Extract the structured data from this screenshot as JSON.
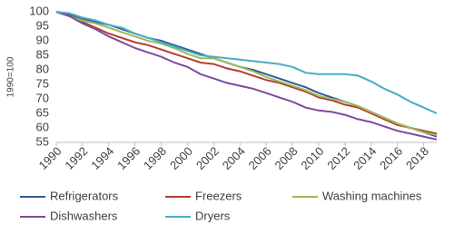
{
  "chart_data": {
    "type": "line",
    "y_label": "1990=100",
    "x": [
      1990,
      1991,
      1992,
      1993,
      1994,
      1995,
      1996,
      1997,
      1998,
      1999,
      2000,
      2001,
      2002,
      2003,
      2004,
      2005,
      2006,
      2007,
      2008,
      2009,
      2010,
      2011,
      2012,
      2013,
      2014,
      2015,
      2016,
      2017,
      2018,
      2019
    ],
    "xlim": [
      1990,
      2019
    ],
    "xticks": [
      1990,
      1992,
      1994,
      1996,
      1998,
      2000,
      2002,
      2004,
      2006,
      2008,
      2010,
      2012,
      2014,
      2016,
      2018
    ],
    "ylim": [
      55,
      100
    ],
    "yticks": [
      55,
      60,
      65,
      70,
      75,
      80,
      85,
      90,
      95,
      100
    ],
    "grid": false,
    "legend": "bottom",
    "series": [
      {
        "name": "Refrigerators",
        "color": "#2f5b9a",
        "values": [
          100,
          99,
          97.5,
          96.5,
          95.5,
          94,
          92.5,
          91,
          90,
          88.5,
          87,
          85.5,
          84,
          82.5,
          81,
          80,
          78.5,
          77,
          75.5,
          74,
          72,
          70.5,
          69,
          67.5,
          65.5,
          63.5,
          61.5,
          60,
          58.5,
          57
        ]
      },
      {
        "name": "Freezers",
        "color": "#b83c33",
        "values": [
          100,
          98.5,
          96.5,
          94.5,
          92.5,
          91,
          89.5,
          88.5,
          87,
          85.5,
          84,
          82.5,
          82,
          80.5,
          79.5,
          78,
          76.5,
          75.5,
          74,
          72.5,
          70.5,
          69.5,
          68,
          67,
          65,
          63,
          61,
          60,
          59,
          58
        ]
      },
      {
        "name": "Washing machines",
        "color": "#9bbb59",
        "values": [
          100,
          98.5,
          97,
          96,
          94.5,
          93,
          91.5,
          90,
          89,
          87.5,
          85.5,
          84,
          84,
          82.5,
          81,
          79.5,
          77.5,
          76,
          74.5,
          73,
          71,
          70,
          69,
          67.5,
          65.5,
          63.5,
          61.5,
          60,
          58.5,
          57.5
        ]
      },
      {
        "name": "Dishwashers",
        "color": "#7c4c9c",
        "values": [
          100,
          98.5,
          96,
          94,
          91.5,
          89.5,
          87.5,
          86,
          84.5,
          82.5,
          81,
          78.5,
          77,
          75.5,
          74.5,
          73.5,
          72,
          70.5,
          69,
          67,
          66,
          65.5,
          64.5,
          63,
          62,
          60.5,
          59,
          58,
          57,
          56
        ]
      },
      {
        "name": "Dryers",
        "color": "#4bacc6",
        "values": [
          100,
          99.5,
          98,
          97,
          95.5,
          94.5,
          92.5,
          91,
          89.5,
          88,
          86.5,
          85,
          84.5,
          84,
          83.5,
          83,
          82.5,
          82,
          81,
          79,
          78.5,
          78.5,
          78.5,
          78,
          76,
          73.5,
          71.5,
          69,
          67,
          65
        ]
      }
    ]
  }
}
